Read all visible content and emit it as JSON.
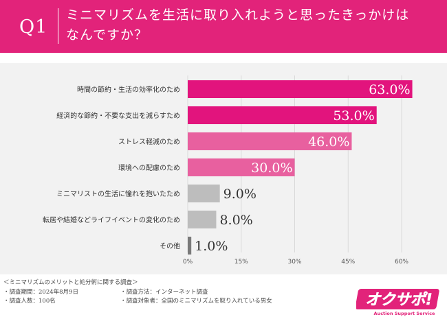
{
  "header": {
    "q_label": "Q1",
    "title_line1": "ミニマリズムを生活に取り入れようと思ったきっかけは",
    "title_line2": "なんですか？"
  },
  "colors": {
    "header_bg": "#e2237a",
    "bar_primary": "#e2147d",
    "bar_secondary": "#e8609f",
    "bar_gray": "#bdbdbd",
    "bar_dark_gray": "#7a7a7a",
    "panel_bg": "#f2f2f2"
  },
  "chart_data": {
    "type": "bar",
    "orientation": "horizontal",
    "categories": [
      "時間の節約・生活の効率化のため",
      "経済的な節約・不要な支出を減らすため",
      "ストレス軽減のため",
      "環境への配慮のため",
      "ミニマリストの生活に憧れを抱いたため",
      "転居や結婚などライフイベントの変化のため",
      "その他"
    ],
    "values": [
      63.0,
      53.0,
      46.0,
      30.0,
      9.0,
      8.0,
      1.0
    ],
    "value_labels": [
      "63.0%",
      "53.0%",
      "46.0%",
      "30.0%",
      "9.0%",
      "8.0%",
      "1.0%"
    ],
    "bar_colors": [
      "#e2147d",
      "#e2147d",
      "#e8609f",
      "#e8609f",
      "#bdbdbd",
      "#bdbdbd",
      "#7a7a7a"
    ],
    "x_ticks": [
      0,
      15,
      30,
      45,
      60
    ],
    "x_tick_labels": [
      "0%",
      "15%",
      "30%",
      "45%",
      "60%"
    ],
    "xlim": [
      0,
      63
    ],
    "grid": true
  },
  "footer": {
    "survey_title": "＜ミニマリズムのメリットと処分術に関する調査＞",
    "period": "・調査期間：2024年8月9日",
    "method": "・調査方法：インターネット調査",
    "count": "・調査人数：100名",
    "target": "・調査対象者：全国のミニマリズムを取り入れている男女"
  },
  "logo": {
    "text": "オクサポ!",
    "subtext": "Auction Support Service"
  }
}
